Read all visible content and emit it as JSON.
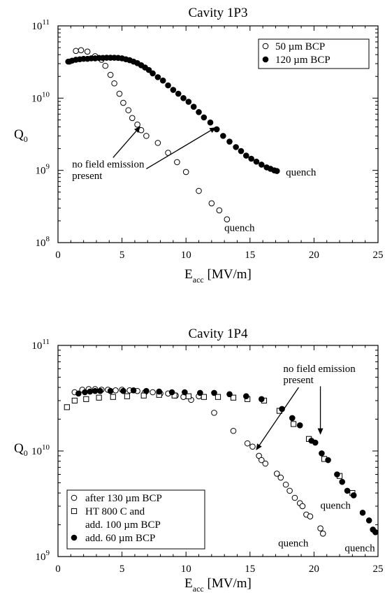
{
  "chart_data": [
    {
      "type": "scatter",
      "title": "Cavity 1P3",
      "xlabel_main": "E",
      "xlabel_sub": "acc",
      "xlabel_unit": " [MV/m]",
      "ylabel_main": "Q",
      "ylabel_sub": "0",
      "xlim": [
        0,
        25
      ],
      "ylim": [
        100000000,
        100000000000
      ],
      "yscale": "log",
      "x_ticks": [
        "0",
        "5",
        "10",
        "15",
        "20",
        "25"
      ],
      "y_tick_base": "10",
      "y_tick_exponents": [
        "8",
        "9",
        "10",
        "11"
      ],
      "legend": [
        "50 µm BCP",
        "120 µm BCP"
      ],
      "legend_position": "top-right",
      "series": [
        {
          "name": "50 µm BCP",
          "marker": "open-circle",
          "x": [
            0.9,
            1.4,
            1.8,
            2.3,
            2.9,
            3.4,
            3.7,
            4.1,
            4.4,
            4.8,
            5.1,
            5.5,
            5.8,
            6.2,
            6.5,
            6.9,
            7.8,
            8.6,
            9.3,
            10.0,
            11.0,
            12.0,
            12.6,
            13.2
          ],
          "y": [
            32000000000.0,
            45000000000.0,
            46000000000.0,
            44000000000.0,
            38000000000.0,
            34000000000.0,
            28000000000.0,
            21000000000.0,
            16000000000.0,
            11500000000.0,
            8600000000.0,
            6800000000.0,
            5300000000.0,
            4300000000.0,
            3600000000.0,
            3000000000.0,
            2400000000.0,
            1750000000.0,
            1300000000.0,
            950000000.0,
            520000000.0,
            350000000.0,
            280000000.0,
            210000000.0
          ]
        },
        {
          "name": "120 µm BCP",
          "marker": "filled-circle",
          "x": [
            0.8,
            1.1,
            1.4,
            1.7,
            2.0,
            2.3,
            2.6,
            2.9,
            3.2,
            3.5,
            3.8,
            4.1,
            4.4,
            4.7,
            5.0,
            5.3,
            5.6,
            5.9,
            6.2,
            6.5,
            6.8,
            7.1,
            7.4,
            7.8,
            8.2,
            8.6,
            9.0,
            9.4,
            9.8,
            10.2,
            10.6,
            11.0,
            11.4,
            11.9,
            12.4,
            12.9,
            13.4,
            13.9,
            14.3,
            14.7,
            15.1,
            15.5,
            15.9,
            16.3,
            16.6,
            16.9,
            17.1
          ],
          "y": [
            32000000000.0,
            33000000000.0,
            34000000000.0,
            34500000000.0,
            35000000000.0,
            35000000000.0,
            35500000000.0,
            35500000000.0,
            36000000000.0,
            36000000000.0,
            36200000000.0,
            36200000000.0,
            36200000000.0,
            36000000000.0,
            35500000000.0,
            34500000000.0,
            33500000000.0,
            32000000000.0,
            30500000000.0,
            28500000000.0,
            26500000000.0,
            24500000000.0,
            22000000000.0,
            19500000000.0,
            17500000000.0,
            15000000000.0,
            13000000000.0,
            11500000000.0,
            10000000000.0,
            8900000000.0,
            7600000000.0,
            6400000000.0,
            5400000000.0,
            4600000000.0,
            3700000000.0,
            3000000000.0,
            2500000000.0,
            2100000000.0,
            1850000000.0,
            1600000000.0,
            1450000000.0,
            1320000000.0,
            1200000000.0,
            1100000000.0,
            1050000000.0,
            1000000000.0,
            980000000.0
          ]
        }
      ],
      "annotations": [
        {
          "text": "no field emission",
          "x": 1.1,
          "y": 1100000000.0
        },
        {
          "text": "present",
          "x": 1.1,
          "y": 760000000.0
        },
        {
          "text": "quench",
          "x": 17.8,
          "y": 850000000.0
        },
        {
          "text": "quench",
          "x": 13.0,
          "y": 145000000.0
        }
      ],
      "arrows": [
        {
          "from": [
            4.3,
            1500000000.0
          ],
          "to": [
            6.4,
            4000000000.0
          ]
        },
        {
          "from": [
            6.9,
            1050000000.0
          ],
          "to": [
            12.3,
            3900000000.0
          ]
        }
      ]
    },
    {
      "type": "scatter",
      "title": "Cavity 1P4",
      "xlabel_main": "E",
      "xlabel_sub": "acc",
      "xlabel_unit": " [MV/m]",
      "ylabel_main": "Q",
      "ylabel_sub": "0",
      "xlim": [
        0,
        25
      ],
      "ylim": [
        1000000000,
        100000000000
      ],
      "yscale": "log",
      "x_ticks": [
        "0",
        "5",
        "10",
        "15",
        "20",
        "25"
      ],
      "y_tick_base": "10",
      "y_tick_exponents": [
        "9",
        "10",
        "11"
      ],
      "legend": [
        "after 130 µm BCP",
        "HT 800 C and",
        "add. 100 µm BCP",
        "add. 60 µm BCP"
      ],
      "legend_position": "bottom-left",
      "series": [
        {
          "name": "after 130 µm BCP",
          "marker": "open-circle",
          "x": [
            1.3,
            1.9,
            2.4,
            2.9,
            3.4,
            3.9,
            4.5,
            5.0,
            5.6,
            6.2,
            6.8,
            7.4,
            8.0,
            8.6,
            9.2,
            9.8,
            10.4,
            11.0,
            12.2,
            13.7,
            14.8,
            15.2,
            15.7,
            15.9,
            16.2,
            17.1,
            17.4,
            17.8,
            18.1,
            18.5,
            18.9,
            19.1,
            19.4,
            19.7,
            20.5,
            20.7
          ],
          "y": [
            36000000000.0,
            38000000000.0,
            38500000000.0,
            38500000000.0,
            38000000000.0,
            38000000000.0,
            37500000000.0,
            38000000000.0,
            37500000000.0,
            37000000000.0,
            36000000000.0,
            36000000000.0,
            35000000000.0,
            35000000000.0,
            33500000000.0,
            32500000000.0,
            30500000000.0,
            33000000000.0,
            23000000000.0,
            15500000000.0,
            11800000000.0,
            11000000000.0,
            9000000000.0,
            8200000000.0,
            7600000000.0,
            6100000000.0,
            5600000000.0,
            4800000000.0,
            4200000000.0,
            3600000000.0,
            3200000000.0,
            3000000000.0,
            2500000000.0,
            2400000000.0,
            1850000000.0,
            1650000000.0
          ]
        },
        {
          "name": "HT 800 C and add. 100 µm BCP",
          "marker": "open-square",
          "x": [
            0.7,
            1.3,
            2.2,
            3.2,
            4.3,
            5.4,
            6.7,
            7.9,
            9.1,
            10.2,
            11.4,
            12.5,
            13.7,
            14.8,
            16.1,
            17.3,
            18.4,
            19.6,
            20.8,
            22.0,
            23.0
          ],
          "y": [
            26000000000.0,
            30000000000.0,
            31000000000.0,
            32000000000.0,
            32500000000.0,
            33000000000.0,
            33500000000.0,
            34000000000.0,
            33500000000.0,
            33000000000.0,
            32500000000.0,
            32500000000.0,
            32000000000.0,
            31000000000.0,
            30000000000.0,
            24000000000.0,
            18000000000.0,
            13000000000.0,
            8400000000.0,
            5800000000.0,
            4000000000.0
          ]
        },
        {
          "name": "add. 60 µm BCP",
          "marker": "filled-circle",
          "x": [
            1.6,
            2.1,
            2.5,
            2.9,
            3.3,
            4.1,
            5.1,
            5.9,
            6.9,
            7.9,
            8.9,
            9.9,
            11.1,
            12.2,
            13.4,
            14.7,
            15.9,
            17.5,
            18.3,
            18.9,
            19.8,
            20.1,
            20.6,
            21.1,
            21.8,
            22.2,
            22.6,
            23.1,
            23.8,
            24.3,
            24.6,
            24.8
          ],
          "y": [
            35000000000.0,
            36000000000.0,
            36500000000.0,
            37000000000.0,
            37000000000.0,
            37000000000.0,
            37000000000.0,
            37500000000.0,
            37000000000.0,
            36500000000.0,
            36000000000.0,
            36000000000.0,
            35500000000.0,
            35500000000.0,
            34500000000.0,
            33000000000.0,
            31000000000.0,
            25000000000.0,
            20500000000.0,
            17500000000.0,
            12500000000.0,
            12000000000.0,
            9500000000.0,
            8200000000.0,
            6000000000.0,
            5100000000.0,
            4200000000.0,
            3800000000.0,
            2600000000.0,
            2200000000.0,
            1800000000.0,
            1700000000.0
          ]
        }
      ],
      "annotations": [
        {
          "text": "no field emission",
          "x": 17.6,
          "y": 56000000000.0
        },
        {
          "text": "present",
          "x": 17.6,
          "y": 44000000000.0
        },
        {
          "text": "quench",
          "x": 20.5,
          "y": 2850000000.0
        },
        {
          "text": "quench",
          "x": 17.2,
          "y": 1250000000.0
        },
        {
          "text": "quench",
          "x": 22.4,
          "y": 1120000000.0
        }
      ],
      "arrows": [
        {
          "from": [
            18.8,
            40000000000.0
          ],
          "to": [
            15.5,
            10300000000.0
          ]
        },
        {
          "from": [
            20.5,
            41000000000.0
          ],
          "to": [
            20.5,
            14500000000.0
          ]
        }
      ]
    }
  ]
}
